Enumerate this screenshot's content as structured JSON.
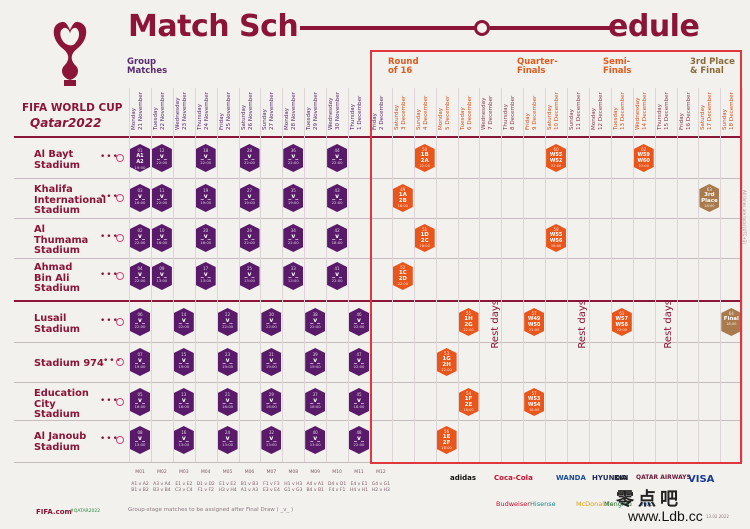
{
  "title_left": "Match Sch",
  "title_right": "edule",
  "brand": {
    "name": "FIFA WORLD CUP",
    "sub": "Qatar2022"
  },
  "phases": {
    "group": "Group\nMatches",
    "r16": "Round\nof 16",
    "qf": "Quarter-\nFinals",
    "sf": "Semi-\nFinals",
    "final": "3rd Place\n& Final"
  },
  "dates": [
    {
      "t": "Monday\n21 November",
      "k": "g"
    },
    {
      "t": "Tuesday\n22 November",
      "k": "g"
    },
    {
      "t": "Wednesday\n23 November",
      "k": "g"
    },
    {
      "t": "Thursday\n24 November",
      "k": "g"
    },
    {
      "t": "Friday\n25 November",
      "k": "g"
    },
    {
      "t": "Saturday\n26 November",
      "k": "g"
    },
    {
      "t": "Sunday\n27 November",
      "k": "g"
    },
    {
      "t": "Monday\n28 November",
      "k": "g"
    },
    {
      "t": "Tuesday\n29 November",
      "k": "g"
    },
    {
      "t": "Wednesday\n30 November",
      "k": "g"
    },
    {
      "t": "Thursday\n1 December",
      "k": "g"
    },
    {
      "t": "Friday\n2 December",
      "k": "g"
    },
    {
      "t": "Saturday\n3 December",
      "k": "ko"
    },
    {
      "t": "Sunday\n4 December",
      "k": "ko"
    },
    {
      "t": "Monday\n5 December",
      "k": "ko"
    },
    {
      "t": "Tuesday\n6 December",
      "k": "ko"
    },
    {
      "t": "Wednesday\n7 December",
      "k": "rest"
    },
    {
      "t": "Thursday\n8 December",
      "k": "rest"
    },
    {
      "t": "Friday\n9 December",
      "k": "ko"
    },
    {
      "t": "Saturday\n10 December",
      "k": "ko"
    },
    {
      "t": "Sunday\n11 December",
      "k": "rest"
    },
    {
      "t": "Monday\n12 December",
      "k": "rest"
    },
    {
      "t": "Tuesday\n13 December",
      "k": "ko"
    },
    {
      "t": "Wednesday\n14 December",
      "k": "ko"
    },
    {
      "t": "Thursday\n15 December",
      "k": "rest"
    },
    {
      "t": "Friday\n16 December",
      "k": "rest"
    },
    {
      "t": "Saturday\n17 December",
      "k": "ko"
    },
    {
      "t": "Sunday\n18 December",
      "k": "ko"
    }
  ],
  "stadiums": [
    "Al Bayt\nStadium",
    "Khalifa\nInternational\nStadium",
    "Al\nThumama\nStadium",
    "Ahmad\nBin Ali\nStadium",
    "Lusail\nStadium",
    "Stadium 974",
    "Education\nCity\nStadium",
    "Al Janoub\nStadium"
  ],
  "group_matches": [
    {
      "row": 0,
      "col": 0,
      "num": "01",
      "mid": "A1\nA2",
      "time": "19:00"
    },
    {
      "row": 0,
      "col": 1,
      "num": "12",
      "mid": "_v_",
      "time": "22:00"
    },
    {
      "row": 0,
      "col": 3,
      "num": "18",
      "mid": "_v_",
      "time": "22:00"
    },
    {
      "row": 0,
      "col": 5,
      "num": "28",
      "mid": "_v_",
      "time": "22:00"
    },
    {
      "row": 0,
      "col": 7,
      "num": "36",
      "mid": "_v_",
      "time": "22:00"
    },
    {
      "row": 0,
      "col": 9,
      "num": "44",
      "mid": "_v_",
      "time": "22:00"
    },
    {
      "row": 1,
      "col": 0,
      "num": "03",
      "mid": "_v_",
      "time": "16:00"
    },
    {
      "row": 1,
      "col": 1,
      "num": "11",
      "mid": "_v_",
      "time": "22:00"
    },
    {
      "row": 1,
      "col": 3,
      "num": "19",
      "mid": "_v_",
      "time": "19:00"
    },
    {
      "row": 1,
      "col": 5,
      "num": "27",
      "mid": "_v_",
      "time": "19:00"
    },
    {
      "row": 1,
      "col": 7,
      "num": "35",
      "mid": "_v_",
      "time": "19:00"
    },
    {
      "row": 1,
      "col": 9,
      "num": "43",
      "mid": "_v_",
      "time": "22:00"
    },
    {
      "row": 2,
      "col": 0,
      "num": "02",
      "mid": "_v_",
      "time": "22:00"
    },
    {
      "row": 2,
      "col": 1,
      "num": "10",
      "mid": "_v_",
      "time": "16:00"
    },
    {
      "row": 2,
      "col": 3,
      "num": "20",
      "mid": "_v_",
      "time": "16:00"
    },
    {
      "row": 2,
      "col": 5,
      "num": "26",
      "mid": "_v_",
      "time": "22:00"
    },
    {
      "row": 2,
      "col": 7,
      "num": "34",
      "mid": "_v_",
      "time": "22:00"
    },
    {
      "row": 2,
      "col": 9,
      "num": "42",
      "mid": "_v_",
      "time": "18:00"
    },
    {
      "row": 3,
      "col": 0,
      "num": "04",
      "mid": "_v_",
      "time": "22:00"
    },
    {
      "row": 3,
      "col": 1,
      "num": "09",
      "mid": "_v_",
      "time": "13:00"
    },
    {
      "row": 3,
      "col": 3,
      "num": "17",
      "mid": "_v_",
      "time": "13:00"
    },
    {
      "row": 3,
      "col": 5,
      "num": "25",
      "mid": "_v_",
      "time": "13:00"
    },
    {
      "row": 3,
      "col": 7,
      "num": "33",
      "mid": "_v_",
      "time": "13:00"
    },
    {
      "row": 3,
      "col": 9,
      "num": "41",
      "mid": "_v_",
      "time": "22:00"
    },
    {
      "row": 4,
      "col": 0,
      "num": "06",
      "mid": "_v_",
      "time": "22:00"
    },
    {
      "row": 4,
      "col": 2,
      "num": "14",
      "mid": "_v_",
      "time": "22:00"
    },
    {
      "row": 4,
      "col": 4,
      "num": "22",
      "mid": "_v_",
      "time": "22:00"
    },
    {
      "row": 4,
      "col": 6,
      "num": "30",
      "mid": "_v_",
      "time": "22:00"
    },
    {
      "row": 4,
      "col": 8,
      "num": "38",
      "mid": "_v_",
      "time": "22:00"
    },
    {
      "row": 4,
      "col": 10,
      "num": "46",
      "mid": "_v_",
      "time": "22:00"
    },
    {
      "row": 5,
      "col": 0,
      "num": "07",
      "mid": "_v_",
      "time": "19:00"
    },
    {
      "row": 5,
      "col": 2,
      "num": "15",
      "mid": "_v_",
      "time": "19:00"
    },
    {
      "row": 5,
      "col": 4,
      "num": "23",
      "mid": "_v_",
      "time": "19:00"
    },
    {
      "row": 5,
      "col": 6,
      "num": "31",
      "mid": "_v_",
      "time": "19:00"
    },
    {
      "row": 5,
      "col": 8,
      "num": "39",
      "mid": "_v_",
      "time": "19:00"
    },
    {
      "row": 5,
      "col": 10,
      "num": "47",
      "mid": "_v_",
      "time": "22:00"
    },
    {
      "row": 6,
      "col": 0,
      "num": "05",
      "mid": "_v_",
      "time": "16:00"
    },
    {
      "row": 6,
      "col": 2,
      "num": "13",
      "mid": "_v_",
      "time": "16:00"
    },
    {
      "row": 6,
      "col": 4,
      "num": "21",
      "mid": "_v_",
      "time": "16:00"
    },
    {
      "row": 6,
      "col": 6,
      "num": "29",
      "mid": "_v_",
      "time": "16:00"
    },
    {
      "row": 6,
      "col": 8,
      "num": "37",
      "mid": "_v_",
      "time": "16:00"
    },
    {
      "row": 6,
      "col": 10,
      "num": "45",
      "mid": "_v_",
      "time": "18:00"
    },
    {
      "row": 7,
      "col": 0,
      "num": "08",
      "mid": "_v_",
      "time": "13:00"
    },
    {
      "row": 7,
      "col": 2,
      "num": "16",
      "mid": "_v_",
      "time": "13:00"
    },
    {
      "row": 7,
      "col": 4,
      "num": "24",
      "mid": "_v_",
      "time": "13:00"
    },
    {
      "row": 7,
      "col": 6,
      "num": "32",
      "mid": "_v_",
      "time": "13:00"
    },
    {
      "row": 7,
      "col": 8,
      "num": "40",
      "mid": "_v_",
      "time": "13:00"
    },
    {
      "row": 7,
      "col": 10,
      "num": "48",
      "mid": "_v_",
      "time": "22:00"
    }
  ],
  "ko_matches": [
    {
      "row": 0,
      "col": 13,
      "num": "50",
      "l1": "1B",
      "l2": "2A",
      "time": "22:00"
    },
    {
      "row": 1,
      "col": 12,
      "num": "49",
      "l1": "1A",
      "l2": "2B",
      "time": "18:00"
    },
    {
      "row": 2,
      "col": 13,
      "num": "51",
      "l1": "1D",
      "l2": "2C",
      "time": "18:00"
    },
    {
      "row": 3,
      "col": 12,
      "num": "52",
      "l1": "1C",
      "l2": "2D",
      "time": "22:00"
    },
    {
      "row": 4,
      "col": 15,
      "num": "55",
      "l1": "1H",
      "l2": "2G",
      "time": "22:00"
    },
    {
      "row": 5,
      "col": 14,
      "num": "53",
      "l1": "1G",
      "l2": "2H",
      "time": "22:00"
    },
    {
      "row": 6,
      "col": 15,
      "num": "54",
      "l1": "1F",
      "l2": "2E",
      "time": "18:00"
    },
    {
      "row": 7,
      "col": 14,
      "num": "56",
      "l1": "1E",
      "l2": "2F",
      "time": "18:00"
    },
    {
      "row": 0,
      "col": 19,
      "num": "60",
      "l1": "W55",
      "l2": "W52",
      "time": "22:00",
      "wide": true
    },
    {
      "row": 2,
      "col": 19,
      "num": "58",
      "l1": "W55",
      "l2": "W56",
      "time": "18:00",
      "wide": true
    },
    {
      "row": 4,
      "col": 18,
      "num": "57",
      "l1": "W49",
      "l2": "W50",
      "time": "22:00",
      "wide": true
    },
    {
      "row": 6,
      "col": 18,
      "num": "57",
      "l1": "W53",
      "l2": "W54",
      "time": "18:00",
      "wide": true
    },
    {
      "row": 0,
      "col": 23,
      "num": "62",
      "l1": "W59",
      "l2": "W60",
      "time": "22:00",
      "wide": true
    },
    {
      "row": 4,
      "col": 22,
      "num": "61",
      "l1": "W57",
      "l2": "W58",
      "time": "22:00",
      "wide": true
    },
    {
      "row": 1,
      "col": 26,
      "num": "63",
      "l1": "3rd",
      "l2": "Place",
      "time": "18:00",
      "kind": "bronze"
    },
    {
      "row": 4,
      "col": 27,
      "num": "64",
      "l1": "Final",
      "l2": "",
      "time": "18:00",
      "kind": "final"
    }
  ],
  "rest_days": [
    "Rest days",
    "Rest days",
    "Rest days"
  ],
  "codes": [
    "M01\n\nA1 v A2\nB1 v B2",
    "M02\n\nA3 v A4\nB3 v B4",
    "M03\n\nE1 v E2\nC3 v C4",
    "M04\n\nD1 v D2\nF1 v F2",
    "M05\n\nE1 v E2\nH3 v H4",
    "M06\n\nB1 v B3\nA1 v A3",
    "M07\n\nF1 v F3\nE3 v E4",
    "M08\n\nH1 v H3\nG1 v G3",
    "M09\n\nA4 v A1\nB4 v B1",
    "M10\n\nD4 v D1\nF4 v F1",
    "M11\n\nE4 v E1\nH4 v H1",
    "M12\n\nG4 v G1\nH2 v H3"
  ],
  "note": "Group-stage matches to be assigned after Final Draw ( _v_ )",
  "footer_brand": "FIFA.com",
  "footer_tag": "#QATAR2022",
  "sponsors_row1": [
    "adidas",
    "Coca-Cola",
    "WANDA",
    "HYUNDAI",
    "KIA",
    "QATAR AIRWAYS",
    "VISA"
  ],
  "sponsors_row2": [
    "Budweiser",
    "Hisense",
    "McDonald's",
    "Mengniu",
    "vivo"
  ],
  "side_text": "All times are local (UTC+3)",
  "watermark": "零点吧",
  "watermark_url": "www.Ldb.cc",
  "print_date": "13.02.2022"
}
